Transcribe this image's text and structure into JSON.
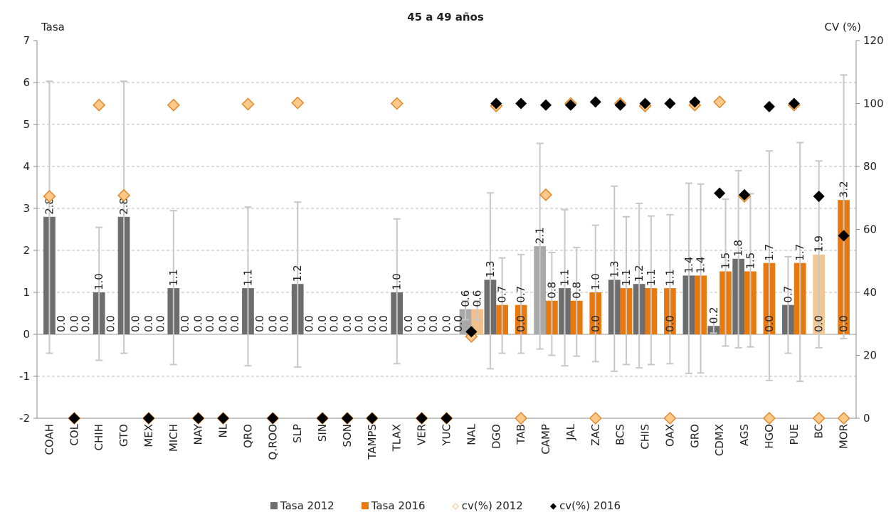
{
  "chart_data": {
    "type": "bar",
    "title": "45 a 49 años",
    "ylabel_left": "Tasa",
    "ylabel_right": "CV (%)",
    "ylim_left": [
      -2,
      7
    ],
    "yticks_left": [
      "-2",
      "-1",
      "0",
      "1",
      "2",
      "3",
      "4",
      "5",
      "6",
      "7"
    ],
    "ylim_right": [
      0,
      120
    ],
    "yticks_right": [
      "0",
      "20",
      "40",
      "60",
      "80",
      "100",
      "120"
    ],
    "grid": "horizontal dashed",
    "legend_placement": "bottom",
    "categories": [
      "COAH",
      "COL",
      "CHIH",
      "GTO",
      "MEX",
      "MICH",
      "NAY",
      "NL",
      "QRO",
      "Q.ROO",
      "SLP",
      "SIN",
      "SON",
      "TAMPS",
      "TLAX",
      "VER",
      "YUC",
      "NAL",
      "DGO",
      "TAB",
      "CAMP",
      "JAL",
      "ZAC",
      "BCS",
      "CHIS",
      "OAX",
      "GRO",
      "CDMX",
      "AGS",
      "HGO",
      "PUE",
      "BC",
      "MOR"
    ],
    "series": [
      {
        "name": "Tasa 2012",
        "kind": "bar",
        "color": "#6d6d6d",
        "values": [
          2.8,
          0.0,
          1.0,
          2.8,
          0.0,
          1.1,
          0.0,
          0.0,
          1.1,
          0.0,
          1.2,
          0.0,
          0.0,
          0.0,
          1.0,
          0.0,
          0.0,
          0.6,
          1.3,
          0.0,
          2.1,
          1.1,
          0.0,
          1.3,
          1.2,
          0.0,
          1.4,
          0.2,
          1.8,
          0.0,
          0.7,
          0.0,
          0.0
        ],
        "labels": [
          "2.8",
          "0.0",
          "1.0",
          "2.8",
          "0.0",
          "1.1",
          "0.0",
          "0.0",
          "1.1",
          "0.0",
          "1.2",
          "0.0",
          "0.0",
          "0.0",
          "1.0",
          "0.0",
          "0.0",
          "0.6",
          "1.3",
          "0.0",
          "2.1",
          "1.1",
          "0.0",
          "1.3",
          "1.2",
          "0.0",
          "1.4",
          "0.2",
          "1.8",
          "0.0",
          "0.7",
          "0.0",
          "0.0"
        ],
        "error_upper": [
          6.03,
          null,
          2.55,
          6.03,
          null,
          2.95,
          null,
          null,
          3.03,
          null,
          3.15,
          null,
          null,
          null,
          2.75,
          null,
          null,
          0.8,
          3.37,
          null,
          4.55,
          2.97,
          null,
          3.53,
          3.12,
          null,
          3.6,
          0.38,
          3.9,
          null,
          1.85,
          null,
          null
        ],
        "error_lower": [
          -0.45,
          null,
          -0.62,
          -0.45,
          null,
          -0.72,
          null,
          null,
          -0.75,
          null,
          -0.78,
          null,
          null,
          null,
          -0.7,
          null,
          null,
          0.35,
          -0.82,
          null,
          -0.35,
          -0.75,
          null,
          -0.88,
          -0.8,
          null,
          -0.93,
          0.03,
          -0.32,
          null,
          -0.45,
          null,
          null
        ]
      },
      {
        "name": "Tasa 2016",
        "kind": "bar",
        "color": "#e8790f",
        "values": [
          0.0,
          0.0,
          0.0,
          0.0,
          0.0,
          0.0,
          0.0,
          0.0,
          0.0,
          0.0,
          0.0,
          0.0,
          0.0,
          0.0,
          0.0,
          0.0,
          0.0,
          0.6,
          0.7,
          0.7,
          0.8,
          0.8,
          1.0,
          1.1,
          1.1,
          1.1,
          1.4,
          1.5,
          1.5,
          1.7,
          1.7,
          1.9,
          3.2
        ],
        "labels": [
          "0.0",
          "0.0",
          "0.0",
          "0.0",
          "0.0",
          "0.0",
          "0.0",
          "0.0",
          "0.0",
          "0.0",
          "0.0",
          "0.0",
          "0.0",
          "0.0",
          "0.0",
          "0.0",
          "0.0",
          "0.6",
          "0.7",
          "0.7",
          "0.8",
          "0.8",
          "1.0",
          "1.1",
          "1.1",
          "1.1",
          "1.4",
          "1.5",
          "1.5",
          "1.7",
          "1.7",
          "1.9",
          "3.2"
        ],
        "error_upper": [
          null,
          null,
          null,
          null,
          null,
          null,
          null,
          null,
          null,
          null,
          null,
          null,
          null,
          null,
          null,
          null,
          null,
          0.8,
          1.82,
          1.9,
          1.95,
          2.07,
          2.6,
          2.8,
          2.82,
          2.85,
          3.58,
          3.22,
          3.35,
          4.37,
          4.57,
          4.13,
          6.18
        ],
        "error_lower": [
          null,
          null,
          null,
          null,
          null,
          null,
          null,
          null,
          null,
          null,
          null,
          null,
          null,
          null,
          null,
          null,
          null,
          0.35,
          -0.45,
          -0.45,
          -0.5,
          -0.52,
          -0.65,
          -0.72,
          -0.72,
          -0.7,
          -0.92,
          -0.28,
          -0.3,
          -1.1,
          -1.12,
          -0.32,
          -0.1
        ]
      },
      {
        "name": "cv(%) 2012",
        "kind": "marker",
        "axis": "right",
        "color": "#f5b46a",
        "values": [
          70.5,
          0,
          99.5,
          70.8,
          0,
          99.5,
          0,
          0,
          99.8,
          0,
          100.2,
          0,
          0,
          0,
          100,
          0,
          0,
          26,
          99.2,
          0,
          71,
          100,
          0,
          100,
          99.2,
          0,
          99.5,
          100.5,
          70.5,
          0,
          99.5,
          0,
          0
        ]
      },
      {
        "name": "cv(%) 2016",
        "kind": "marker",
        "axis": "right",
        "color": "#000000",
        "values": [
          0,
          0,
          0,
          0,
          0,
          0,
          0,
          0,
          0,
          0,
          0,
          0,
          0,
          0,
          0,
          0,
          0,
          27.5,
          100,
          100,
          99.5,
          99.5,
          100.5,
          99.5,
          100,
          100,
          100.5,
          71.5,
          71,
          99,
          100,
          70.5,
          58
        ]
      }
    ]
  }
}
